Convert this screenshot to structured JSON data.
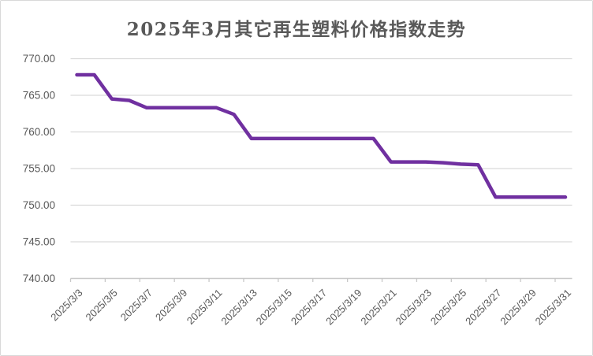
{
  "title": "2025年3月其它再生塑料价格指数走势",
  "colors": {
    "line": "#7030A0",
    "title_text": "#595959",
    "tick_text": "#595959",
    "gridline": "#d9d9d9",
    "axis_line": "#c8c8c8",
    "frame_border": "#d9d9d9",
    "background": "#ffffff"
  },
  "chart_data": {
    "type": "line",
    "title": "2025年3月其它再生塑料价格指数走势",
    "xlabel": "",
    "ylabel": "",
    "x": [
      "2025/3/3",
      "2025/3/4",
      "2025/3/5",
      "2025/3/6",
      "2025/3/7",
      "2025/3/8",
      "2025/3/9",
      "2025/3/10",
      "2025/3/11",
      "2025/3/12",
      "2025/3/13",
      "2025/3/14",
      "2025/3/15",
      "2025/3/16",
      "2025/3/17",
      "2025/3/18",
      "2025/3/19",
      "2025/3/20",
      "2025/3/21",
      "2025/3/22",
      "2025/3/23",
      "2025/3/24",
      "2025/3/25",
      "2025/3/26",
      "2025/3/27",
      "2025/3/28",
      "2025/3/29",
      "2025/3/30",
      "2025/3/31"
    ],
    "series": [
      {
        "name": "其它再生塑料价格指数",
        "values": [
          767.8,
          767.8,
          764.5,
          764.3,
          763.3,
          763.3,
          763.3,
          763.3,
          763.3,
          762.4,
          759.1,
          759.1,
          759.1,
          759.1,
          759.1,
          759.1,
          759.1,
          759.1,
          755.9,
          755.9,
          755.9,
          755.8,
          755.6,
          755.5,
          751.1,
          751.1,
          751.1,
          751.1,
          751.1
        ],
        "color": "#7030A0"
      }
    ],
    "ylim": [
      740,
      770
    ],
    "ytick_step": 5,
    "ytick_labels": [
      "770.00",
      "765.00",
      "760.00",
      "755.00",
      "750.00",
      "745.00",
      "740.00"
    ],
    "xtick_labels": [
      "2025/3/3",
      "2025/3/5",
      "2025/3/7",
      "2025/3/9",
      "2025/3/11",
      "2025/3/13",
      "2025/3/15",
      "2025/3/17",
      "2025/3/19",
      "2025/3/21",
      "2025/3/23",
      "2025/3/25",
      "2025/3/27",
      "2025/3/29",
      "2025/3/31"
    ],
    "xtick_every": 2,
    "xtick_label_rotation_deg": 45,
    "grid": true,
    "legend": false
  }
}
